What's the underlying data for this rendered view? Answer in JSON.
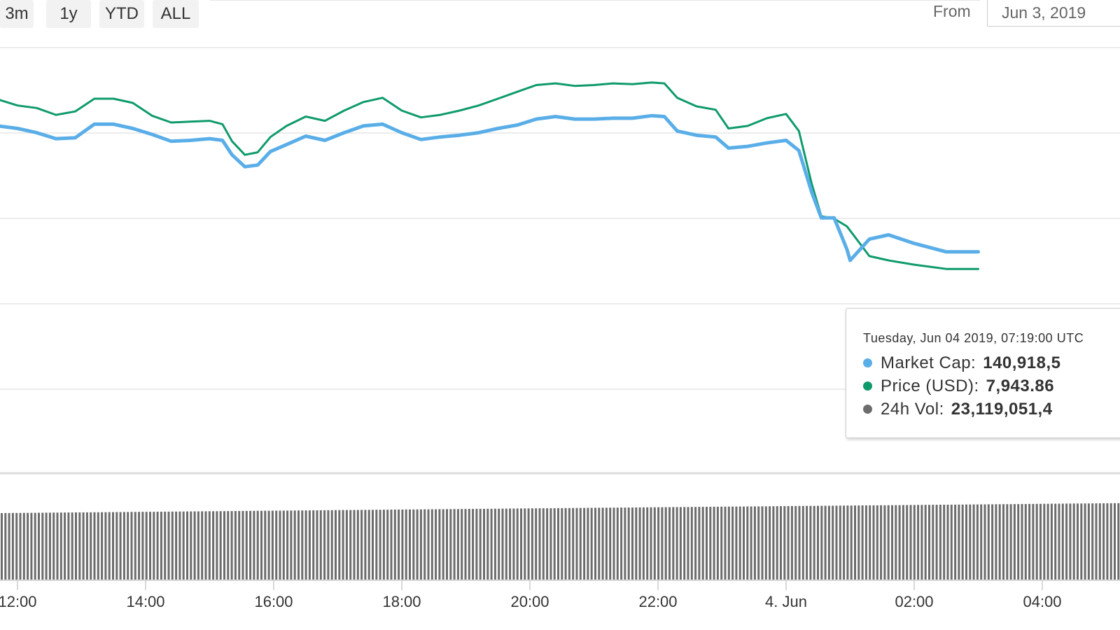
{
  "range_buttons": [
    "3m",
    "1y",
    "YTD",
    "ALL"
  ],
  "from": {
    "label": "From",
    "value": "Jun 3, 2019"
  },
  "tooltip": {
    "date": "Tuesday, Jun 04 2019, 07:19:00 UTC",
    "rows": [
      {
        "label": "Market Cap:",
        "value": "140,918,5",
        "color": "#5aaee8"
      },
      {
        "label": "Price (USD):",
        "value": "7,943.86",
        "color": "#0f9a6c"
      },
      {
        "label": "24h Vol:",
        "value": "23,119,051,4",
        "color": "#6c6c6c"
      }
    ]
  },
  "colors": {
    "market_cap": "#5aaee8",
    "price": "#0f9a6c",
    "volume": "#6c6c6c",
    "grid": "#e6e6e6"
  },
  "chart_data": {
    "type": "line",
    "x_tick_labels": [
      "12:00",
      "14:00",
      "16:00",
      "18:00",
      "20:00",
      "22:00",
      "4. Jun",
      "02:00",
      "04:00"
    ],
    "x_tick_times": [
      "Jun 3 12:00",
      "Jun 3 14:00",
      "Jun 3 16:00",
      "Jun 3 18:00",
      "Jun 3 20:00",
      "Jun 3 22:00",
      "Jun 4 00:00",
      "Jun 4 02:00",
      "Jun 4 04:00"
    ],
    "x_range": [
      "Jun 3 09:40",
      "Jun 4 05:00"
    ],
    "grid": "horizontal",
    "y_axis_labels_visible": false,
    "series": [
      {
        "name": "Market Cap",
        "key": "market_cap",
        "points": [
          [
            -2.17,
            8500
          ],
          [
            -2.0,
            8497
          ],
          [
            -1.85,
            8488
          ],
          [
            -1.7,
            8475
          ],
          [
            -1.5,
            8488
          ],
          [
            -1.3,
            8486
          ],
          [
            -1.1,
            8494
          ],
          [
            -0.9,
            8507
          ],
          [
            -0.6,
            8511
          ],
          [
            -0.3,
            8508
          ],
          [
            0.0,
            8505
          ],
          [
            0.3,
            8500
          ],
          [
            0.6,
            8493
          ],
          [
            0.9,
            8494
          ],
          [
            1.2,
            8510
          ],
          [
            1.5,
            8510
          ],
          [
            1.8,
            8505
          ],
          [
            2.1,
            8498
          ],
          [
            2.4,
            8490
          ],
          [
            2.7,
            8491
          ],
          [
            3.0,
            8493
          ],
          [
            3.2,
            8491
          ],
          [
            3.35,
            8474
          ],
          [
            3.55,
            8460
          ],
          [
            3.75,
            8462
          ],
          [
            3.95,
            8478
          ],
          [
            4.2,
            8486
          ],
          [
            4.5,
            8496
          ],
          [
            4.8,
            8491
          ],
          [
            5.1,
            8500
          ],
          [
            5.4,
            8508
          ],
          [
            5.7,
            8510
          ],
          [
            6.0,
            8500
          ],
          [
            6.3,
            8492
          ],
          [
            6.6,
            8495
          ],
          [
            6.9,
            8497
          ],
          [
            7.2,
            8500
          ],
          [
            7.5,
            8505
          ],
          [
            7.8,
            8509
          ],
          [
            8.1,
            8516
          ],
          [
            8.4,
            8519
          ],
          [
            8.7,
            8516
          ],
          [
            9.0,
            8516
          ],
          [
            9.3,
            8517
          ],
          [
            9.6,
            8517
          ],
          [
            9.9,
            8520
          ],
          [
            10.1,
            8519
          ],
          [
            10.3,
            8502
          ],
          [
            10.6,
            8497
          ],
          [
            10.9,
            8495
          ],
          [
            11.1,
            8482
          ],
          [
            11.4,
            8484
          ],
          [
            11.7,
            8488
          ],
          [
            12.0,
            8491
          ],
          [
            12.2,
            8479
          ],
          [
            12.4,
            8430
          ],
          [
            12.55,
            8400
          ],
          [
            12.75,
            8400
          ],
          [
            12.95,
            8363
          ],
          [
            13.0,
            8350
          ],
          [
            13.3,
            8375
          ],
          [
            13.6,
            8380
          ],
          [
            14.0,
            8370
          ],
          [
            14.5,
            8360
          ],
          [
            15.0,
            8360
          ]
        ]
      },
      {
        "name": "Price (USD)",
        "key": "price",
        "points": [
          [
            -2.17,
            8525
          ],
          [
            -2.0,
            8522
          ],
          [
            -1.85,
            8512
          ],
          [
            -1.7,
            8501
          ],
          [
            -1.5,
            8512
          ],
          [
            -1.3,
            8511
          ],
          [
            -1.1,
            8521
          ],
          [
            -0.9,
            8535
          ],
          [
            -0.6,
            8542
          ],
          [
            -0.3,
            8539
          ],
          [
            0.0,
            8532
          ],
          [
            0.3,
            8529
          ],
          [
            0.6,
            8521
          ],
          [
            0.9,
            8525
          ],
          [
            1.2,
            8540
          ],
          [
            1.5,
            8540
          ],
          [
            1.8,
            8535
          ],
          [
            2.1,
            8520
          ],
          [
            2.4,
            8512
          ],
          [
            2.7,
            8513
          ],
          [
            3.0,
            8514
          ],
          [
            3.2,
            8510
          ],
          [
            3.35,
            8490
          ],
          [
            3.55,
            8474
          ],
          [
            3.75,
            8477
          ],
          [
            3.95,
            8495
          ],
          [
            4.2,
            8508
          ],
          [
            4.5,
            8519
          ],
          [
            4.8,
            8514
          ],
          [
            5.1,
            8526
          ],
          [
            5.4,
            8536
          ],
          [
            5.7,
            8541
          ],
          [
            6.0,
            8526
          ],
          [
            6.3,
            8518
          ],
          [
            6.6,
            8521
          ],
          [
            6.9,
            8526
          ],
          [
            7.2,
            8532
          ],
          [
            7.5,
            8540
          ],
          [
            7.8,
            8548
          ],
          [
            8.1,
            8556
          ],
          [
            8.4,
            8558
          ],
          [
            8.7,
            8555
          ],
          [
            9.0,
            8556
          ],
          [
            9.3,
            8558
          ],
          [
            9.6,
            8557
          ],
          [
            9.9,
            8559
          ],
          [
            10.1,
            8558
          ],
          [
            10.3,
            8541
          ],
          [
            10.6,
            8531
          ],
          [
            10.9,
            8527
          ],
          [
            11.1,
            8505
          ],
          [
            11.4,
            8508
          ],
          [
            11.7,
            8517
          ],
          [
            12.0,
            8522
          ],
          [
            12.2,
            8502
          ],
          [
            12.4,
            8440
          ],
          [
            12.55,
            8402
          ],
          [
            12.75,
            8399
          ],
          [
            12.95,
            8390
          ],
          [
            13.0,
            8385
          ],
          [
            13.3,
            8355
          ],
          [
            13.6,
            8350
          ],
          [
            14.0,
            8345
          ],
          [
            14.5,
            8340
          ],
          [
            15.0,
            8340
          ]
        ]
      },
      {
        "name": "24h Vol",
        "key": "volume",
        "start_value": 100,
        "end_value": 115,
        "unit": "relative"
      }
    ]
  }
}
